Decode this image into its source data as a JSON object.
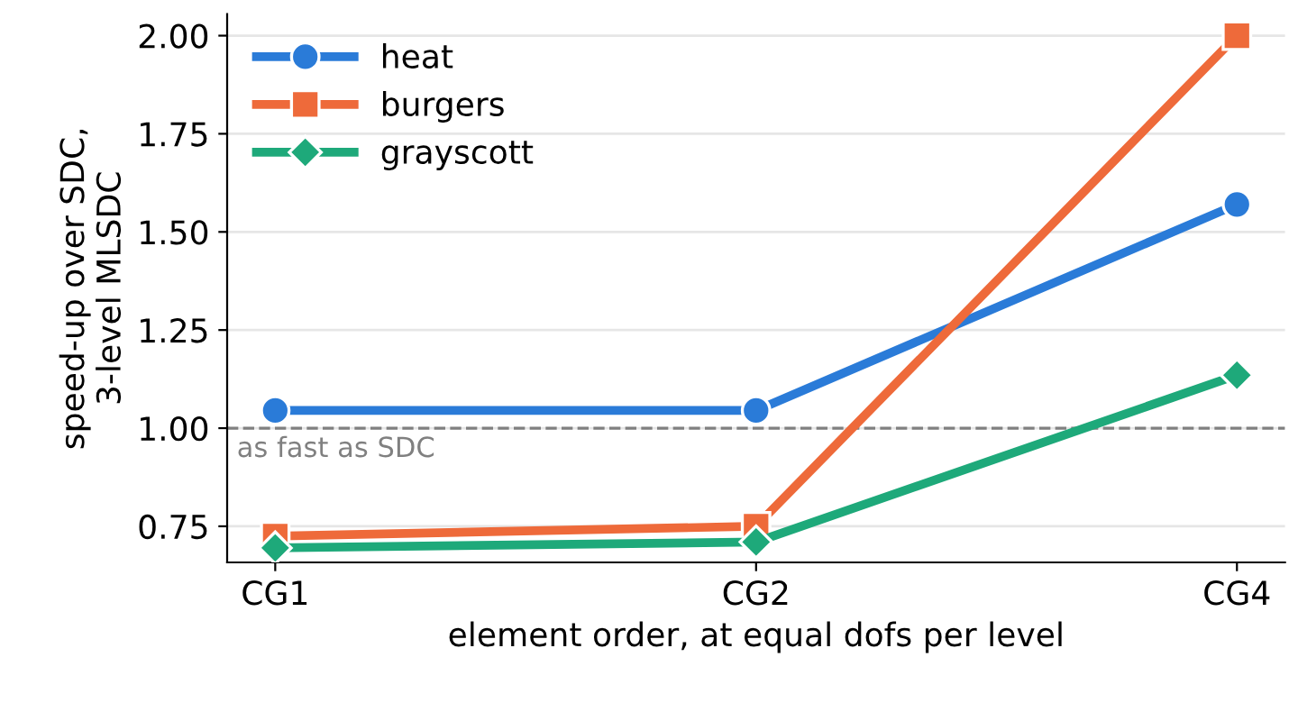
{
  "chart_data": {
    "type": "line",
    "xlabel": "element order, at equal dofs per level",
    "ylabel": "speed-up over SDC,\n3-level MLSDC",
    "categories": [
      "CG1",
      "CG2",
      "CG4"
    ],
    "series": [
      {
        "name": "heat",
        "color": "#2a7bd8",
        "marker": "circle",
        "values": [
          1.045,
          1.045,
          1.57
        ]
      },
      {
        "name": "burgers",
        "color": "#ee6a3a",
        "marker": "square",
        "values": [
          0.725,
          0.75,
          2.0
        ]
      },
      {
        "name": "grayscott",
        "color": "#1ea97a",
        "marker": "diamond",
        "values": [
          0.695,
          0.71,
          1.135
        ]
      }
    ],
    "ylim": [
      0.658,
      2.055
    ],
    "yticks": [
      {
        "value": 0.75,
        "label": "0.75"
      },
      {
        "value": 1.0,
        "label": "1.00"
      },
      {
        "value": 1.25,
        "label": "1.25"
      },
      {
        "value": 1.5,
        "label": "1.50"
      },
      {
        "value": 1.75,
        "label": "1.75"
      },
      {
        "value": 2.0,
        "label": "2.00"
      }
    ],
    "grid": "y",
    "legend": "top left",
    "line_style": "solid",
    "ref_lines": [
      {
        "axis": "y",
        "value": 1.0,
        "label": "as fast as SDC",
        "color": "#808080",
        "line_style": "dashed"
      }
    ]
  }
}
